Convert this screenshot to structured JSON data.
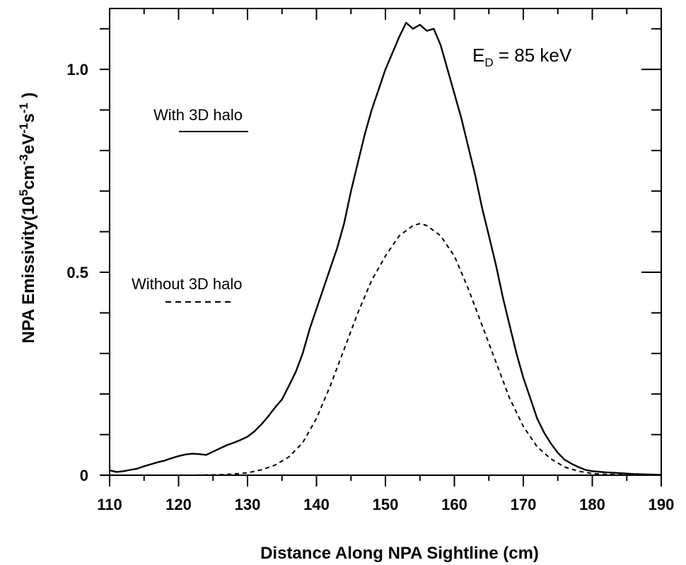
{
  "chart_data": {
    "type": "line",
    "title": "",
    "xlabel": "Distance Along NPA Sightline (cm)",
    "ylabel": {
      "base": "NPA Emissivity(10",
      "parts": [
        {
          "text": "5",
          "sup": true
        },
        {
          "text": "cm",
          "sup": false
        },
        {
          "text": "-3",
          "sup": true
        },
        {
          "text": "eV",
          "sup": false
        },
        {
          "text": "-1",
          "sup": true
        },
        {
          "text": "s",
          "sup": false
        },
        {
          "text": "-1",
          "sup": true
        },
        {
          "text": " )",
          "sup": false
        }
      ]
    },
    "xlim": [
      110,
      190
    ],
    "ylim": [
      0,
      1.15
    ],
    "x_ticks": [
      110,
      120,
      130,
      140,
      150,
      160,
      170,
      180,
      190
    ],
    "x_tick_labels": [
      "110",
      "120",
      "130",
      "140",
      "150",
      "160",
      "170",
      "180",
      "190"
    ],
    "y_ticks": [
      0,
      0.5,
      1.0
    ],
    "y_tick_labels": [
      "0",
      "0.5",
      "1.0"
    ],
    "y_minor_step": 0.1,
    "x_minor_step": 5,
    "annotation": {
      "main": "E",
      "sub": "D",
      "rest": " = 85 keV"
    },
    "series": [
      {
        "name": "With 3D halo",
        "style": "solid",
        "color": "#000000",
        "points": [
          [
            110,
            0.012
          ],
          [
            111,
            0.008
          ],
          [
            112,
            0.01
          ],
          [
            113,
            0.013
          ],
          [
            114,
            0.016
          ],
          [
            115,
            0.022
          ],
          [
            116,
            0.027
          ],
          [
            117,
            0.032
          ],
          [
            118,
            0.036
          ],
          [
            119,
            0.042
          ],
          [
            120,
            0.047
          ],
          [
            121,
            0.051
          ],
          [
            122,
            0.053
          ],
          [
            123,
            0.052
          ],
          [
            124,
            0.05
          ],
          [
            125,
            0.058
          ],
          [
            126,
            0.066
          ],
          [
            127,
            0.074
          ],
          [
            128,
            0.08
          ],
          [
            129,
            0.087
          ],
          [
            130,
            0.095
          ],
          [
            131,
            0.108
          ],
          [
            132,
            0.125
          ],
          [
            133,
            0.145
          ],
          [
            134,
            0.167
          ],
          [
            135,
            0.187
          ],
          [
            136,
            0.22
          ],
          [
            137,
            0.255
          ],
          [
            138,
            0.3
          ],
          [
            139,
            0.36
          ],
          [
            140,
            0.41
          ],
          [
            141,
            0.46
          ],
          [
            142,
            0.51
          ],
          [
            143,
            0.56
          ],
          [
            144,
            0.62
          ],
          [
            145,
            0.7
          ],
          [
            146,
            0.77
          ],
          [
            147,
            0.84
          ],
          [
            148,
            0.9
          ],
          [
            149,
            0.95
          ],
          [
            150,
            1.0
          ],
          [
            151,
            1.04
          ],
          [
            152,
            1.08
          ],
          [
            153,
            1.115
          ],
          [
            154,
            1.1
          ],
          [
            155,
            1.11
          ],
          [
            156,
            1.095
          ],
          [
            157,
            1.1
          ],
          [
            158,
            1.06
          ],
          [
            159,
            1.0
          ],
          [
            160,
            0.94
          ],
          [
            161,
            0.88
          ],
          [
            162,
            0.81
          ],
          [
            163,
            0.74
          ],
          [
            164,
            0.66
          ],
          [
            165,
            0.59
          ],
          [
            166,
            0.52
          ],
          [
            167,
            0.44
          ],
          [
            168,
            0.37
          ],
          [
            169,
            0.3
          ],
          [
            170,
            0.24
          ],
          [
            171,
            0.19
          ],
          [
            172,
            0.14
          ],
          [
            173,
            0.105
          ],
          [
            174,
            0.078
          ],
          [
            175,
            0.055
          ],
          [
            176,
            0.038
          ],
          [
            177,
            0.028
          ],
          [
            178,
            0.02
          ],
          [
            179,
            0.013
          ],
          [
            180,
            0.01
          ],
          [
            182,
            0.007
          ],
          [
            184,
            0.005
          ],
          [
            186,
            0.003
          ],
          [
            188,
            0.002
          ],
          [
            190,
            0.001
          ]
        ]
      },
      {
        "name": "Without 3D halo",
        "style": "dashed",
        "color": "#000000",
        "points": [
          [
            118,
            0.0
          ],
          [
            122,
            0.0
          ],
          [
            126,
            0.001
          ],
          [
            128,
            0.003
          ],
          [
            130,
            0.006
          ],
          [
            132,
            0.013
          ],
          [
            134,
            0.025
          ],
          [
            136,
            0.045
          ],
          [
            138,
            0.08
          ],
          [
            140,
            0.14
          ],
          [
            142,
            0.22
          ],
          [
            144,
            0.31
          ],
          [
            146,
            0.4
          ],
          [
            148,
            0.48
          ],
          [
            150,
            0.54
          ],
          [
            152,
            0.59
          ],
          [
            154,
            0.615
          ],
          [
            155,
            0.62
          ],
          [
            156,
            0.615
          ],
          [
            158,
            0.59
          ],
          [
            160,
            0.54
          ],
          [
            162,
            0.46
          ],
          [
            164,
            0.37
          ],
          [
            166,
            0.28
          ],
          [
            168,
            0.19
          ],
          [
            170,
            0.12
          ],
          [
            172,
            0.07
          ],
          [
            174,
            0.04
          ],
          [
            176,
            0.02
          ],
          [
            178,
            0.01
          ],
          [
            180,
            0.004
          ],
          [
            182,
            0.002
          ],
          [
            184,
            0.001
          ],
          [
            186,
            0.0
          ]
        ]
      }
    ],
    "legend": [
      {
        "label": "With 3D halo",
        "style": "solid"
      },
      {
        "label": "Without 3D halo",
        "style": "dashed"
      }
    ]
  }
}
